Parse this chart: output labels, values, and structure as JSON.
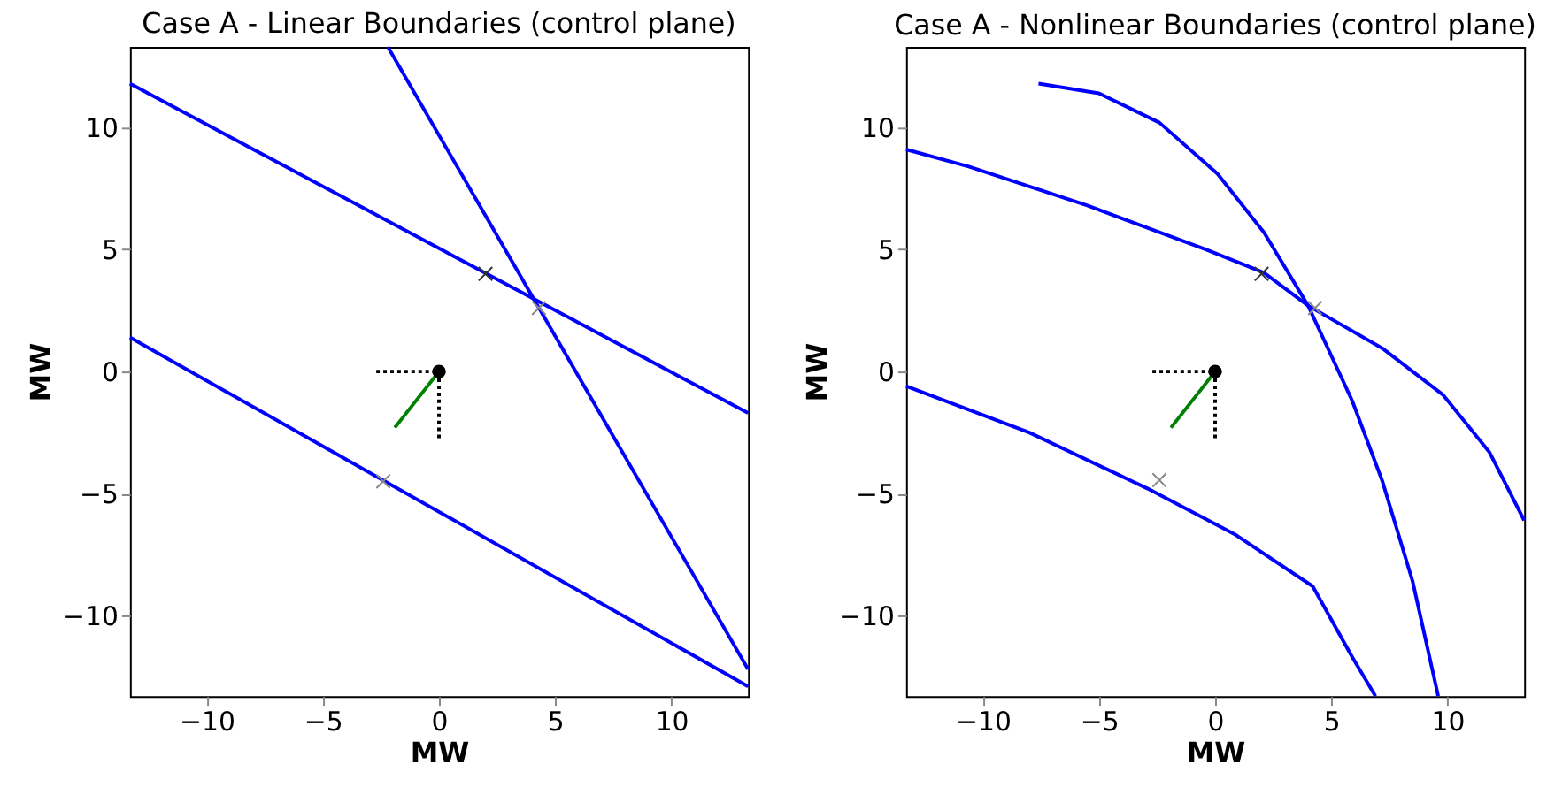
{
  "chart_data": [
    {
      "type": "line",
      "title": "Case A - Linear Boundaries (control plane)",
      "xlabel": "MW",
      "ylabel": "MW",
      "xlim": [
        -13.3,
        13.3
      ],
      "ylim": [
        -13.3,
        13.3
      ],
      "xticks": [
        -10,
        -5,
        0,
        5,
        10
      ],
      "yticks": [
        -10,
        -5,
        0,
        5,
        10
      ],
      "grid": false,
      "line_style": "solid",
      "series": [
        {
          "color": "#0000ff",
          "x": [
            -13.3,
            13.3
          ],
          "values": [
            11.8,
            -1.7
          ]
        },
        {
          "color": "#0000ff",
          "x": [
            -2.2,
            13.3
          ],
          "values": [
            13.3,
            -12.2
          ]
        },
        {
          "color": "#0000ff",
          "x": [
            -13.3,
            13.3
          ],
          "values": [
            1.4,
            -12.9
          ]
        },
        {
          "color": "#000000",
          "line_style": "dotted",
          "x": [
            -2.7,
            0
          ],
          "values": [
            0,
            0
          ]
        },
        {
          "color": "#000000",
          "line_style": "dotted",
          "x": [
            0,
            0
          ],
          "values": [
            0,
            -2.8
          ]
        },
        {
          "color": "#008000",
          "x": [
            0,
            -1.9
          ],
          "values": [
            0,
            -2.3
          ]
        },
        {
          "type": "scatter",
          "marker": "circle",
          "color": "#000000",
          "x": [
            0
          ],
          "values": [
            0
          ]
        },
        {
          "type": "scatter",
          "marker": "cross",
          "color": "#333333",
          "x": [
            2.0
          ],
          "values": [
            4.0
          ]
        },
        {
          "type": "scatter",
          "marker": "cross",
          "color": "#888888",
          "x": [
            4.3,
            -2.4
          ],
          "values": [
            2.6,
            -4.5
          ]
        }
      ]
    },
    {
      "type": "line",
      "title": "Case A - Nonlinear Boundaries (control plane)",
      "xlabel": "MW",
      "ylabel": "MW",
      "xlim": [
        -13.3,
        13.3
      ],
      "ylim": [
        -13.3,
        13.3
      ],
      "xticks": [
        -10,
        -5,
        0,
        5,
        10
      ],
      "yticks": [
        -10,
        -5,
        0,
        5,
        10
      ],
      "grid": false,
      "line_style": "solid",
      "series": [
        {
          "color": "#0000ff",
          "x": [
            -13.3,
            -10.6,
            -5.5,
            -0.4,
            2.1,
            4.0,
            7.2,
            9.8,
            11.8,
            13.3
          ],
          "values": [
            9.1,
            8.4,
            6.8,
            5.0,
            4.05,
            2.7,
            0.95,
            -0.95,
            -3.3,
            -6.1
          ]
        },
        {
          "color": "#0000ff",
          "x": [
            -7.6,
            -5.0,
            -2.4,
            0.1,
            2.1,
            4.0,
            5.9,
            7.2,
            8.5,
            9.6
          ],
          "values": [
            11.8,
            11.4,
            10.2,
            8.1,
            5.7,
            2.7,
            -1.2,
            -4.5,
            -8.6,
            -13.3
          ]
        },
        {
          "color": "#0000ff",
          "x": [
            -13.3,
            -8.0,
            -2.9,
            0.9,
            4.2,
            5.9,
            6.9
          ],
          "values": [
            -0.6,
            -2.5,
            -4.8,
            -6.7,
            -8.8,
            -11.7,
            -13.3
          ]
        },
        {
          "color": "#000000",
          "line_style": "dotted",
          "x": [
            -2.7,
            0
          ],
          "values": [
            0,
            0
          ]
        },
        {
          "color": "#000000",
          "line_style": "dotted",
          "x": [
            0,
            0
          ],
          "values": [
            0,
            -2.8
          ]
        },
        {
          "color": "#008000",
          "x": [
            0,
            -1.9
          ],
          "values": [
            0,
            -2.3
          ]
        },
        {
          "type": "scatter",
          "marker": "circle",
          "color": "#000000",
          "x": [
            0
          ],
          "values": [
            0
          ]
        },
        {
          "type": "scatter",
          "marker": "cross",
          "color": "#333333",
          "x": [
            2.0
          ],
          "values": [
            4.0
          ]
        },
        {
          "type": "scatter",
          "marker": "cross",
          "color": "#888888",
          "x": [
            4.3,
            -2.4
          ],
          "values": [
            2.6,
            -4.45
          ]
        }
      ]
    }
  ]
}
